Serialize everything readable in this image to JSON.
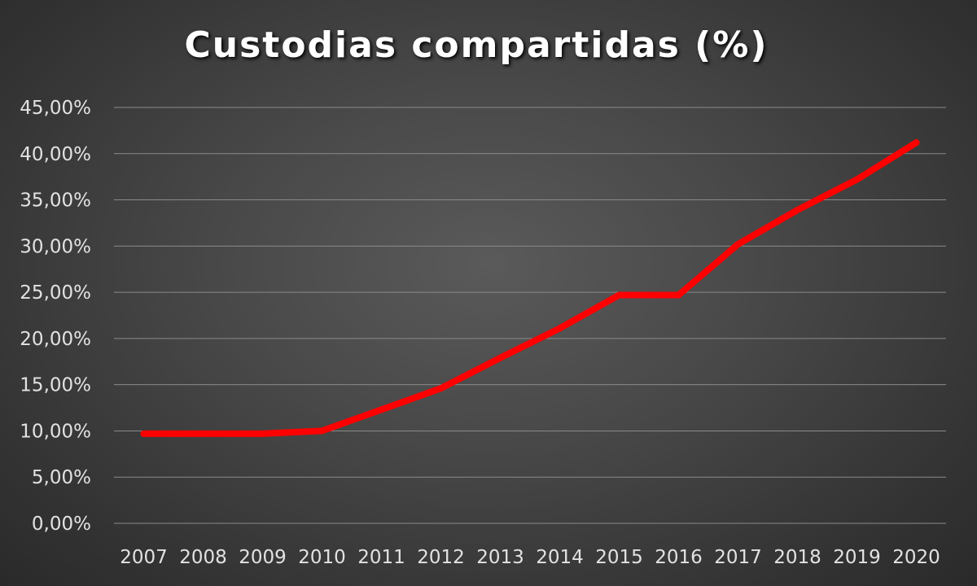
{
  "chart_data": {
    "type": "line",
    "title": "Custodias compartidas (%)",
    "xlabel": "",
    "ylabel": "",
    "categories": [
      "2007",
      "2008",
      "2009",
      "2010",
      "2011",
      "2012",
      "2013",
      "2014",
      "2015",
      "2016",
      "2017",
      "2018",
      "2019",
      "2020"
    ],
    "series": [
      {
        "values": [
          9.7,
          9.7,
          9.7,
          10.0,
          12.3,
          14.6,
          17.9,
          21.1,
          24.7,
          24.7,
          30.2,
          33.9,
          37.2,
          41.2
        ],
        "color": "#ff0000"
      }
    ],
    "ylim": [
      0,
      45
    ],
    "y_ticks": [
      "0,00%",
      "5,00%",
      "10,00%",
      "15,00%",
      "20,00%",
      "25,00%",
      "30,00%",
      "35,00%",
      "40,00%",
      "45,00%"
    ],
    "y_tick_values": [
      0,
      5,
      10,
      15,
      20,
      25,
      30,
      35,
      40,
      45
    ],
    "grid": true,
    "legend": "none",
    "colors": {
      "gridline": "#8a8a8a",
      "tick_text": "#e2e2e2",
      "title_text": "#ffffff"
    }
  }
}
